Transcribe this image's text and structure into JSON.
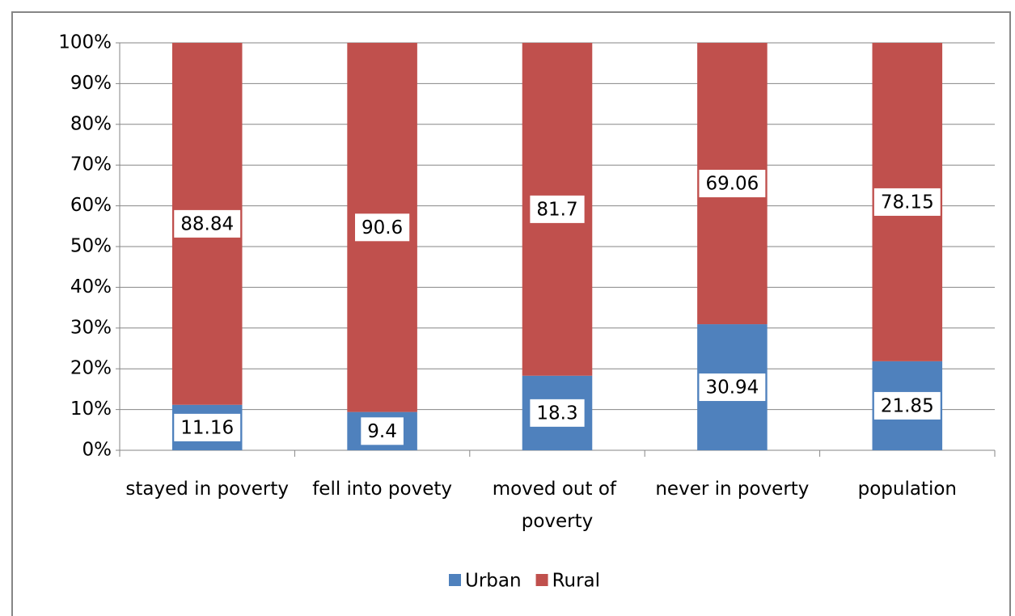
{
  "chart_data": {
    "type": "stacked_bar",
    "categories": [
      "stayed in poverty",
      "fell into povety",
      "moved out of poverty",
      "never in poverty",
      "population"
    ],
    "series": [
      {
        "name": "Urban",
        "color": "#4f81bd",
        "values": [
          11.16,
          9.4,
          18.3,
          30.94,
          21.85
        ]
      },
      {
        "name": "Rural",
        "color": "#c0504d",
        "values": [
          88.84,
          90.6,
          81.7,
          69.06,
          78.15
        ]
      }
    ],
    "ylim": [
      0,
      100
    ],
    "yticks": [
      {
        "value": 0,
        "label": "0%"
      },
      {
        "value": 10,
        "label": "10%"
      },
      {
        "value": 20,
        "label": "20%"
      },
      {
        "value": 30,
        "label": "30%"
      },
      {
        "value": 40,
        "label": "40%"
      },
      {
        "value": 50,
        "label": "50%"
      },
      {
        "value": 60,
        "label": "60%"
      },
      {
        "value": 70,
        "label": "70%"
      },
      {
        "value": 80,
        "label": "80%"
      },
      {
        "value": 90,
        "label": "90%"
      },
      {
        "value": 100,
        "label": "100%"
      }
    ],
    "grid": true,
    "legend": "bottom"
  }
}
